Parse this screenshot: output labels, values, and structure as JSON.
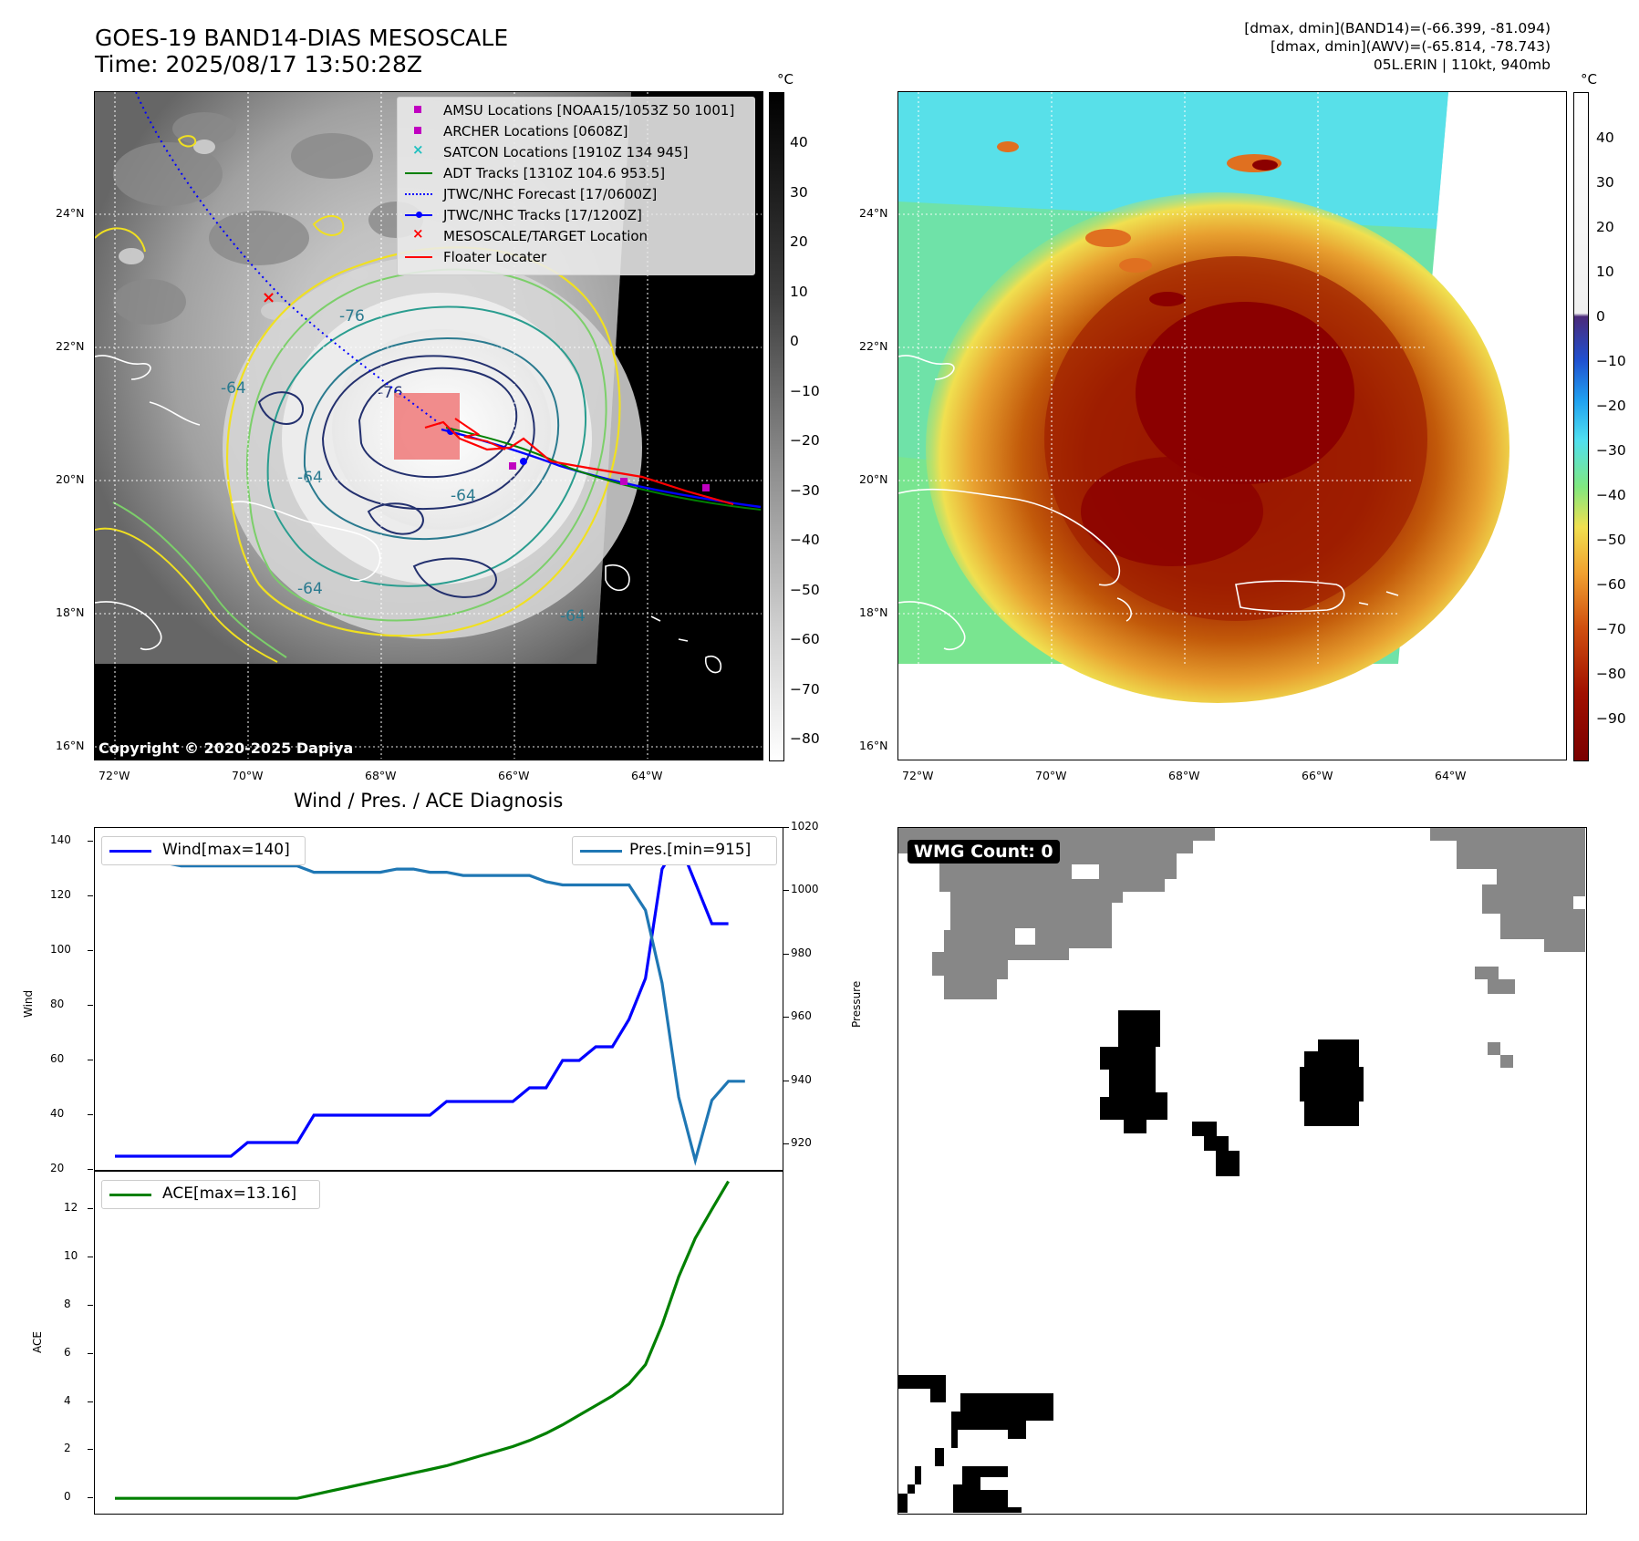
{
  "header": {
    "title_line1": "GOES-19 BAND14-DIAS MESOSCALE",
    "title_line2": "Time: 2025/08/17 13:50:28Z",
    "info_line1": "[dmax, dmin](BAND14)=(-66.399, -81.094)",
    "info_line2": "[dmax, dmin](AWV)=(-65.814, -78.743)",
    "info_line3": "05L.ERIN | 110kt, 940mb"
  },
  "map_left": {
    "unit": "°C",
    "colorbar_ticks": [
      "40",
      "30",
      "20",
      "10",
      "0",
      "−10",
      "−20",
      "−30",
      "−40",
      "−50",
      "−60",
      "−70",
      "−80"
    ],
    "lat_labels": [
      "24°N",
      "22°N",
      "20°N",
      "18°N",
      "16°N"
    ],
    "lon_labels": [
      "72°W",
      "70°W",
      "68°W",
      "66°W",
      "64°W"
    ],
    "copyright": "Copyright © 2020-2025 Dapiya",
    "contour_labels": [
      "-76",
      "-64",
      "-76",
      "-64",
      "-64",
      "-64",
      "-64"
    ],
    "legend": [
      {
        "label": "AMSU Locations [NOAA15/1053Z 50 1001]",
        "marker": "square",
        "color": "#c000c0"
      },
      {
        "label": "ARCHER Locations [0608Z]",
        "marker": "square",
        "color": "#c000c0"
      },
      {
        "label": "SATCON Locations [1910Z 134 945]",
        "marker": "x",
        "color": "#20c0c0"
      },
      {
        "label": "ADT Tracks [1310Z 104.6 953.5]",
        "marker": "line",
        "color": "#008000"
      },
      {
        "label": "JTWC/NHC Forecast [17/0600Z]",
        "marker": "dotted",
        "color": "#0000ff"
      },
      {
        "label": "JTWC/NHC Tracks [17/1200Z]",
        "marker": "linedot",
        "color": "#0000ff"
      },
      {
        "label": "MESOSCALE/TARGET Location",
        "marker": "x",
        "color": "#ff0000"
      },
      {
        "label": "Floater Locater",
        "marker": "line",
        "color": "#ff0000"
      }
    ]
  },
  "map_right": {
    "unit": "°C",
    "colorbar_ticks": [
      "40",
      "30",
      "20",
      "10",
      "0",
      "−10",
      "−20",
      "−30",
      "−40",
      "−50",
      "−60",
      "−70",
      "−80",
      "−90"
    ],
    "lat_labels": [
      "24°N",
      "22°N",
      "20°N",
      "18°N",
      "16°N"
    ],
    "lon_labels": [
      "72°W",
      "70°W",
      "68°W",
      "66°W",
      "64°W"
    ]
  },
  "wmg_panel": {
    "label": "WMG Count: 0"
  },
  "chart_data": [
    {
      "type": "line",
      "title": "Wind / Pres. / ACE Diagnosis",
      "ylabel": "Wind",
      "y2label": "Pressure",
      "ylim": [
        20,
        145
      ],
      "y2lim": [
        912,
        1020
      ],
      "y_ticks": [
        "140",
        "120",
        "100",
        "80",
        "60",
        "40",
        "20"
      ],
      "y2_ticks": [
        "1020",
        "1000",
        "980",
        "960",
        "940",
        "920"
      ],
      "x": [
        0,
        1,
        2,
        3,
        4,
        5,
        6,
        7,
        8,
        9,
        10,
        11,
        12,
        13,
        14,
        15,
        16,
        17,
        18,
        19,
        20,
        21,
        22,
        23,
        24,
        25,
        26,
        27,
        28,
        29,
        30,
        31,
        32,
        33,
        34,
        35,
        36,
        37,
        38
      ],
      "series": [
        {
          "name": "Wind[max=140]",
          "color": "#0000ff",
          "values": [
            25,
            25,
            25,
            25,
            25,
            25,
            25,
            25,
            30,
            30,
            30,
            30,
            40,
            40,
            40,
            40,
            40,
            40,
            40,
            40,
            45,
            45,
            45,
            45,
            45,
            50,
            50,
            60,
            60,
            65,
            65,
            75,
            90,
            130,
            140,
            125,
            110,
            110,
            null
          ]
        },
        {
          "name": "Pres.[min=915]",
          "color": "#1f77b4",
          "axis": "right",
          "values": [
            1015,
            1015,
            1010,
            1009,
            1008,
            1008,
            1008,
            1008,
            1008,
            1008,
            1008,
            1008,
            1006,
            1006,
            1006,
            1006,
            1006,
            1007,
            1007,
            1006,
            1006,
            1005,
            1005,
            1005,
            1005,
            1005,
            1003,
            1002,
            1002,
            1002,
            1002,
            1002,
            994,
            971,
            935,
            915,
            934,
            940,
            940
          ]
        }
      ]
    },
    {
      "type": "line",
      "ylabel": "ACE",
      "ylim": [
        -0.6,
        13.6
      ],
      "y_ticks": [
        "12",
        "10",
        "8",
        "6",
        "4",
        "2",
        "0"
      ],
      "x": [
        0,
        1,
        2,
        3,
        4,
        5,
        6,
        7,
        8,
        9,
        10,
        11,
        12,
        13,
        14,
        15,
        16,
        17,
        18,
        19,
        20,
        21,
        22,
        23,
        24,
        25,
        26,
        27,
        28,
        29,
        30,
        31,
        32,
        33,
        34,
        35,
        36,
        37,
        38
      ],
      "series": [
        {
          "name": "ACE[max=13.16]",
          "color": "#008000",
          "values": [
            0,
            0,
            0,
            0,
            0,
            0,
            0,
            0,
            0,
            0,
            0,
            0,
            0.15,
            0.3,
            0.45,
            0.6,
            0.75,
            0.9,
            1.05,
            1.2,
            1.35,
            1.55,
            1.75,
            1.95,
            2.15,
            2.4,
            2.7,
            3.05,
            3.45,
            3.85,
            4.25,
            4.75,
            5.55,
            7.2,
            9.2,
            10.8,
            12.0,
            13.16,
            null
          ]
        }
      ]
    }
  ]
}
